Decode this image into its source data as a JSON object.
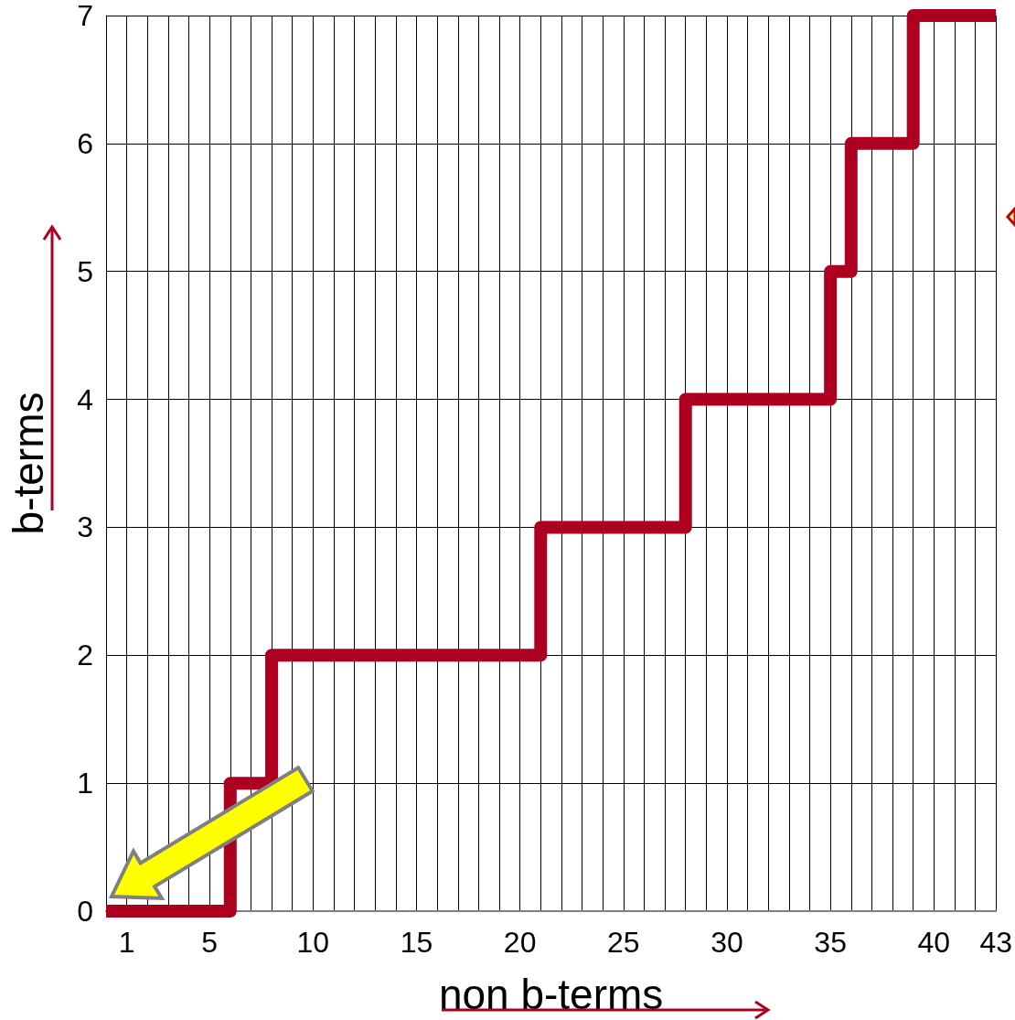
{
  "chart_data": {
    "type": "step",
    "xlabel": "non b-terms",
    "ylabel": "b-terms",
    "x": [
      0,
      6,
      8,
      21,
      28,
      35,
      36,
      39,
      43
    ],
    "series": [
      {
        "color": "#ad0020",
        "values": [
          0,
          1,
          2,
          3,
          4,
          5,
          6,
          7,
          7
        ]
      }
    ],
    "xlim": [
      0,
      43
    ],
    "xticks": [
      1,
      5,
      10,
      15,
      20,
      25,
      30,
      35,
      40,
      43
    ],
    "ylim": [
      0,
      7
    ],
    "yticks": [
      0,
      1,
      2,
      3,
      4,
      5,
      6,
      7
    ],
    "grid": true,
    "marker": "none",
    "line_style": "solid"
  }
}
